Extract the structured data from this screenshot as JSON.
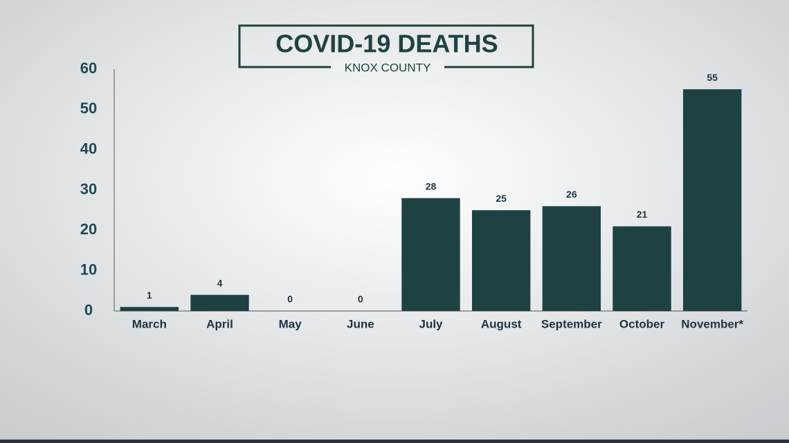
{
  "chart_data": {
    "type": "bar",
    "title": "COVID-19 DEATHS",
    "subtitle": "KNOX COUNTY",
    "categories": [
      "March",
      "April",
      "May",
      "June",
      "July",
      "August",
      "September",
      "October",
      "November*"
    ],
    "values": [
      1,
      4,
      0,
      0,
      28,
      25,
      26,
      21,
      55
    ],
    "color": "#1d4241",
    "ylim": [
      0,
      60
    ],
    "yticks": [
      0,
      10,
      20,
      30,
      40,
      50,
      60
    ],
    "grid": false
  }
}
